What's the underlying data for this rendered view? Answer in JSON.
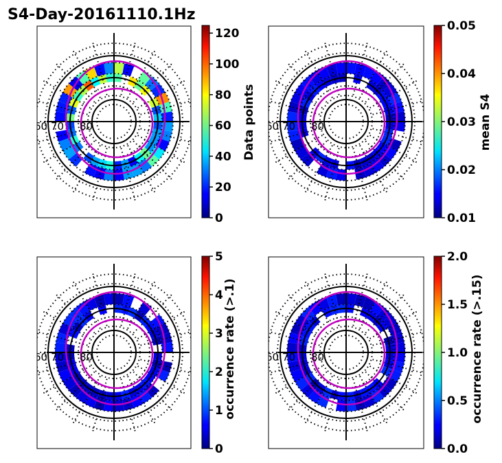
{
  "figure": {
    "title": "S4-Day-20161110.1Hz"
  },
  "chart_data": [
    {
      "type": "heatmap",
      "projection": "polar",
      "latitude_labels": [
        "60",
        "70",
        "80"
      ],
      "colormap": "jet",
      "colorbar": {
        "label": "Data points",
        "range": [
          0,
          125
        ],
        "ticks": [
          "0",
          "20",
          "40",
          "60",
          "80",
          "100",
          "120"
        ],
        "tick_values": [
          0,
          20,
          40,
          60,
          80,
          100,
          120
        ]
      }
    },
    {
      "type": "heatmap",
      "projection": "polar",
      "latitude_labels": [
        "60",
        "70",
        "80"
      ],
      "colormap": "jet",
      "colorbar": {
        "label": "mean S4",
        "range": [
          0.01,
          0.05
        ],
        "ticks": [
          "0.01",
          "0.02",
          "0.03",
          "0.04",
          "0.05"
        ],
        "tick_values": [
          0.01,
          0.02,
          0.03,
          0.04,
          0.05
        ]
      }
    },
    {
      "type": "heatmap",
      "projection": "polar",
      "latitude_labels": [
        "60",
        "70",
        "80"
      ],
      "colormap": "jet",
      "colorbar": {
        "label": "occurrence rate (>.1)",
        "range": [
          0,
          5
        ],
        "ticks": [
          "0",
          "1",
          "2",
          "3",
          "4",
          "5"
        ],
        "tick_values": [
          0,
          1,
          2,
          3,
          4,
          5
        ]
      }
    },
    {
      "type": "heatmap",
      "projection": "polar",
      "latitude_labels": [
        "60",
        "70",
        "80"
      ],
      "colormap": "jet",
      "colorbar": {
        "label": "occurrence rate (>.15)",
        "range": [
          0,
          2
        ],
        "ticks": [
          "0.0",
          "0.5",
          "1.0",
          "1.5",
          "2.0"
        ],
        "tick_values": [
          0,
          0.5,
          1.0,
          1.5,
          2.0
        ]
      }
    }
  ]
}
